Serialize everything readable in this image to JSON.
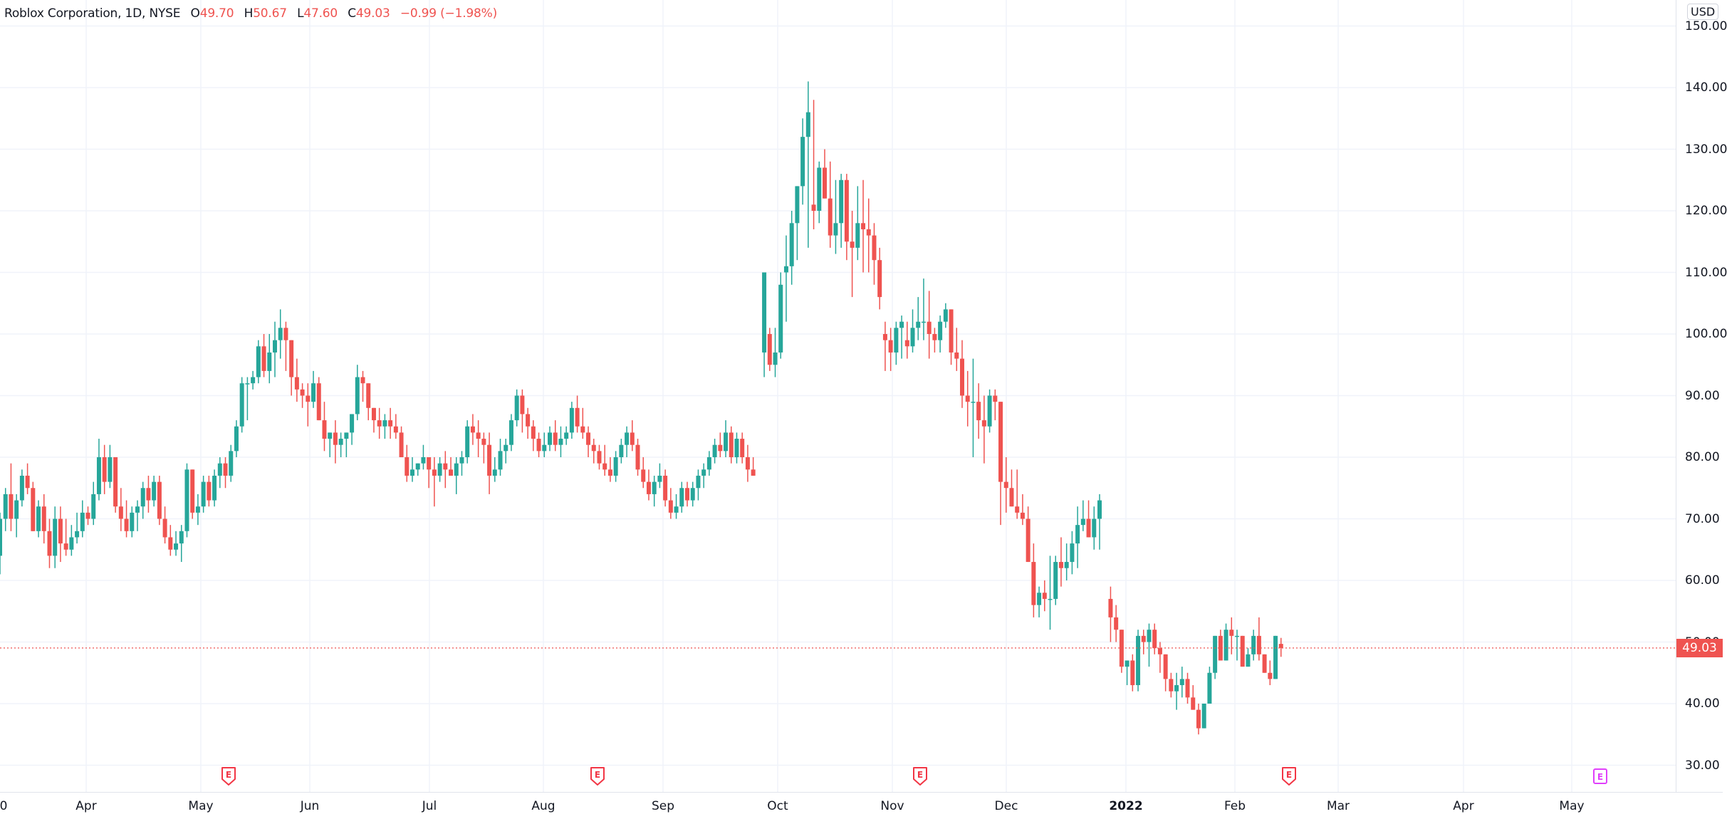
{
  "legend": {
    "symbol": "Roblox Corporation, 1D, NYSE",
    "open_label": "O",
    "open": "49.70",
    "high_label": "H",
    "high": "50.67",
    "low_label": "L",
    "low": "47.60",
    "close_label": "C",
    "close": "49.03",
    "change": "−0.99 (−1.98%)"
  },
  "price_axis": {
    "currency": "USD",
    "last_price": "49.03",
    "ticks": [
      "150.00",
      "140.00",
      "130.00",
      "120.00",
      "110.00",
      "100.00",
      "90.00",
      "80.00",
      "70.00",
      "60.00",
      "50.00",
      "40.00",
      "30.00"
    ]
  },
  "time_axis": {
    "labels": [
      {
        "text": "0",
        "x": 5,
        "bold": false
      },
      {
        "text": "Apr",
        "x": 121,
        "bold": false
      },
      {
        "text": "May",
        "x": 282,
        "bold": false
      },
      {
        "text": "Jun",
        "x": 435,
        "bold": false
      },
      {
        "text": "Jul",
        "x": 603,
        "bold": false
      },
      {
        "text": "Aug",
        "x": 763,
        "bold": false
      },
      {
        "text": "Sep",
        "x": 931,
        "bold": false
      },
      {
        "text": "Oct",
        "x": 1092,
        "bold": false
      },
      {
        "text": "Nov",
        "x": 1253,
        "bold": false
      },
      {
        "text": "Dec",
        "x": 1413,
        "bold": false
      },
      {
        "text": "2022",
        "x": 1581,
        "bold": true
      },
      {
        "text": "Feb",
        "x": 1734,
        "bold": false
      },
      {
        "text": "Mar",
        "x": 1879,
        "bold": false
      },
      {
        "text": "Apr",
        "x": 2055,
        "bold": false
      },
      {
        "text": "May",
        "x": 2207,
        "bold": false
      }
    ]
  },
  "earnings_markers": [
    {
      "label": "E",
      "x": 321,
      "color": "#f23645"
    },
    {
      "label": "E",
      "x": 839,
      "color": "#f23645"
    },
    {
      "label": "E",
      "x": 1292,
      "color": "#f23645"
    },
    {
      "label": "E",
      "x": 1810,
      "color": "#f23645"
    },
    {
      "label": "E",
      "x": 2247,
      "color": "#e040fb"
    }
  ],
  "colors": {
    "up": "#26a69a",
    "down": "#ef5350",
    "grid": "#f0f3fa",
    "last_line": "#ef5350"
  },
  "chart_data": {
    "type": "candlestick",
    "title": "Roblox Corporation, 1D, NYSE",
    "xlabel": "",
    "ylabel": "USD",
    "ylim": [
      26,
      152
    ],
    "grid": true,
    "last_price": 49.03,
    "x_ticks": [
      "Apr",
      "May",
      "Jun",
      "Jul",
      "Aug",
      "Sep",
      "Oct",
      "Nov",
      "Dec",
      "2022",
      "Feb",
      "Mar",
      "Apr",
      "May"
    ],
    "y_ticks": [
      30,
      40,
      50,
      60,
      70,
      80,
      90,
      100,
      110,
      120,
      130,
      140,
      150
    ],
    "candle_spacing_px": 7.72,
    "first_candle_x": 0,
    "ohlc": [
      [
        64,
        71,
        61,
        70
      ],
      [
        70,
        75,
        68,
        74
      ],
      [
        74,
        79,
        68,
        70
      ],
      [
        70,
        74,
        67,
        73
      ],
      [
        73,
        78,
        72,
        77
      ],
      [
        77,
        79,
        74,
        75
      ],
      [
        75,
        76,
        70,
        68
      ],
      [
        68,
        73,
        67,
        72
      ],
      [
        72,
        74,
        66,
        68
      ],
      [
        68,
        70,
        62,
        64
      ],
      [
        64,
        72,
        62,
        70
      ],
      [
        70,
        72,
        63,
        66
      ],
      [
        66,
        70,
        64,
        65
      ],
      [
        65,
        69,
        64,
        67
      ],
      [
        67,
        71,
        66,
        68
      ],
      [
        68,
        73,
        67,
        71
      ],
      [
        71,
        72,
        69,
        70
      ],
      [
        70,
        76,
        69,
        74
      ],
      [
        74,
        83,
        73,
        80
      ],
      [
        80,
        82,
        74,
        76
      ],
      [
        76,
        82,
        75,
        80
      ],
      [
        80,
        80,
        71,
        72
      ],
      [
        72,
        75,
        68,
        70
      ],
      [
        70,
        73,
        67,
        68
      ],
      [
        68,
        72,
        67,
        71
      ],
      [
        71,
        73,
        68,
        72
      ],
      [
        72,
        76,
        70,
        75
      ],
      [
        75,
        77,
        71,
        73
      ],
      [
        73,
        77,
        72,
        76
      ],
      [
        76,
        77,
        69,
        70
      ],
      [
        70,
        72,
        66,
        67
      ],
      [
        67,
        69,
        64,
        65
      ],
      [
        65,
        68,
        64,
        66
      ],
      [
        66,
        69,
        63,
        68
      ],
      [
        68,
        79,
        67,
        78
      ],
      [
        78,
        78,
        70,
        71
      ],
      [
        71,
        74,
        69,
        72
      ],
      [
        72,
        77,
        71,
        76
      ],
      [
        76,
        77,
        72,
        73
      ],
      [
        73,
        78,
        72,
        77
      ],
      [
        77,
        80,
        75,
        79
      ],
      [
        79,
        80,
        75,
        77
      ],
      [
        77,
        82,
        76,
        81
      ],
      [
        81,
        86,
        80,
        85
      ],
      [
        85,
        93,
        84,
        92
      ],
      [
        92,
        93,
        86,
        92
      ],
      [
        92,
        94,
        91,
        93
      ],
      [
        93,
        99,
        92,
        98
      ],
      [
        98,
        100,
        93,
        94
      ],
      [
        94,
        100,
        92,
        97
      ],
      [
        97,
        102,
        93,
        99
      ],
      [
        99,
        104,
        96,
        101
      ],
      [
        101,
        102,
        94,
        99
      ],
      [
        99,
        95,
        90,
        93
      ],
      [
        93,
        96,
        89,
        91
      ],
      [
        91,
        92,
        88,
        90
      ],
      [
        90,
        92,
        85,
        89
      ],
      [
        89,
        94,
        88,
        92
      ],
      [
        92,
        93,
        86,
        86
      ],
      [
        86,
        89,
        81,
        83
      ],
      [
        83,
        84,
        80,
        84
      ],
      [
        84,
        86,
        79,
        82
      ],
      [
        82,
        84,
        80,
        83
      ],
      [
        83,
        84,
        80,
        84
      ],
      [
        84,
        87,
        82,
        87
      ],
      [
        87,
        95,
        86,
        93
      ],
      [
        93,
        94,
        89,
        92
      ],
      [
        92,
        92,
        86,
        88
      ],
      [
        88,
        88,
        84,
        86
      ],
      [
        86,
        88,
        83,
        85
      ],
      [
        85,
        87,
        83,
        86
      ],
      [
        86,
        88,
        83,
        85
      ],
      [
        85,
        87,
        83,
        84
      ],
      [
        84,
        85,
        80,
        80
      ],
      [
        80,
        82,
        76,
        77
      ],
      [
        77,
        80,
        76,
        78
      ],
      [
        78,
        79,
        77,
        79
      ],
      [
        79,
        82,
        78,
        80
      ],
      [
        80,
        80,
        75,
        78
      ],
      [
        78,
        80,
        72,
        77
      ],
      [
        77,
        80,
        76,
        79
      ],
      [
        79,
        81,
        75,
        78
      ],
      [
        78,
        80,
        77,
        77
      ],
      [
        77,
        80,
        74,
        79
      ],
      [
        79,
        81,
        77,
        80
      ],
      [
        80,
        86,
        79,
        85
      ],
      [
        85,
        87,
        82,
        84
      ],
      [
        84,
        86,
        80,
        83
      ],
      [
        83,
        84,
        79,
        82
      ],
      [
        82,
        84,
        74,
        77
      ],
      [
        77,
        80,
        76,
        78
      ],
      [
        78,
        83,
        77,
        81
      ],
      [
        81,
        83,
        79,
        82
      ],
      [
        82,
        87,
        81,
        86
      ],
      [
        86,
        91,
        85,
        90
      ],
      [
        90,
        91,
        84,
        87
      ],
      [
        87,
        88,
        83,
        85
      ],
      [
        85,
        86,
        81,
        83
      ],
      [
        83,
        84,
        80,
        81
      ],
      [
        81,
        84,
        80,
        82
      ],
      [
        82,
        85,
        81,
        84
      ],
      [
        84,
        86,
        81,
        82
      ],
      [
        82,
        85,
        80,
        83
      ],
      [
        83,
        85,
        82,
        84
      ],
      [
        84,
        89,
        83,
        88
      ],
      [
        88,
        90,
        84,
        85
      ],
      [
        85,
        88,
        83,
        84
      ],
      [
        84,
        85,
        80,
        82
      ],
      [
        82,
        83,
        79,
        81
      ],
      [
        81,
        82,
        78,
        79
      ],
      [
        79,
        82,
        77,
        78
      ],
      [
        78,
        80,
        76,
        77
      ],
      [
        77,
        81,
        76,
        80
      ],
      [
        80,
        83,
        79,
        82
      ],
      [
        82,
        85,
        80,
        84
      ],
      [
        84,
        86,
        81,
        82
      ],
      [
        82,
        83,
        77,
        78
      ],
      [
        78,
        80,
        75,
        76
      ],
      [
        76,
        78,
        73,
        74
      ],
      [
        74,
        77,
        72,
        76
      ],
      [
        76,
        79,
        75,
        77
      ],
      [
        77,
        78,
        72,
        73
      ],
      [
        73,
        75,
        70,
        71
      ],
      [
        71,
        74,
        70,
        72
      ],
      [
        72,
        76,
        71,
        75
      ],
      [
        75,
        76,
        72,
        73
      ],
      [
        73,
        76,
        72,
        75
      ],
      [
        75,
        78,
        73,
        77
      ],
      [
        77,
        79,
        75,
        78
      ],
      [
        78,
        81,
        77,
        80
      ],
      [
        80,
        83,
        79,
        82
      ],
      [
        82,
        84,
        80,
        81
      ],
      [
        81,
        86,
        80,
        84
      ],
      [
        84,
        85,
        79,
        80
      ],
      [
        80,
        84,
        79,
        83
      ],
      [
        83,
        84,
        79,
        80
      ],
      [
        80,
        82,
        76,
        78
      ],
      [
        78,
        80,
        77,
        77
      ],
      null,
      [
        97,
        110,
        93,
        110
      ],
      [
        100,
        101,
        94,
        95
      ],
      [
        95,
        101,
        93,
        97
      ],
      [
        97,
        110,
        96,
        108
      ],
      [
        110,
        116,
        102,
        111
      ],
      [
        111,
        120,
        108,
        118
      ],
      [
        118,
        124,
        112,
        124
      ],
      [
        124,
        135,
        121,
        132
      ],
      [
        132,
        141,
        114,
        136
      ],
      [
        121,
        138,
        117,
        120
      ],
      [
        120,
        128,
        118,
        127
      ],
      [
        127,
        130,
        122,
        122
      ],
      [
        122,
        128,
        114,
        116
      ],
      [
        116,
        125,
        113,
        118
      ],
      [
        118,
        126,
        114,
        125
      ],
      [
        125,
        126,
        112,
        115
      ],
      [
        115,
        120,
        106,
        114
      ],
      [
        114,
        124,
        112,
        118
      ],
      [
        118,
        125,
        110,
        117
      ],
      [
        117,
        122,
        110,
        116
      ],
      [
        116,
        118,
        108,
        112
      ],
      [
        112,
        114,
        104,
        106
      ],
      [
        100,
        102,
        94,
        99
      ],
      [
        99,
        101,
        94,
        97
      ],
      [
        97,
        102,
        95,
        101
      ],
      [
        101,
        103,
        96,
        102
      ],
      [
        99,
        102,
        96,
        98
      ],
      [
        98,
        104,
        97,
        101
      ],
      [
        101,
        106,
        99,
        102
      ],
      [
        102,
        109,
        99,
        102
      ],
      [
        102,
        107,
        96,
        100
      ],
      [
        100,
        101,
        97,
        99
      ],
      [
        99,
        103,
        97,
        102
      ],
      [
        102,
        105,
        101,
        104
      ],
      [
        104,
        103,
        95,
        97
      ],
      [
        97,
        101,
        94,
        96
      ],
      [
        96,
        99,
        88,
        90
      ],
      [
        90,
        94,
        85,
        89
      ],
      [
        89,
        96,
        80,
        89
      ],
      [
        89,
        92,
        83,
        86
      ],
      [
        86,
        90,
        79,
        85
      ],
      [
        85,
        91,
        84,
        90
      ],
      [
        90,
        91,
        86,
        89
      ],
      [
        89,
        89,
        69,
        76
      ],
      [
        76,
        80,
        71,
        75
      ],
      [
        75,
        78,
        72,
        72
      ],
      [
        72,
        78,
        70,
        71
      ],
      [
        71,
        74,
        69,
        70
      ],
      [
        70,
        72,
        64,
        63
      ],
      [
        63,
        66,
        54,
        56
      ],
      [
        56,
        59,
        54,
        58
      ],
      [
        58,
        60,
        55,
        57
      ],
      [
        57,
        64,
        52,
        57
      ],
      [
        57,
        64,
        56,
        63
      ],
      [
        63,
        67,
        59,
        62
      ],
      [
        62,
        66,
        60,
        63
      ],
      [
        63,
        68,
        61,
        66
      ],
      [
        66,
        72,
        62,
        69
      ],
      [
        69,
        73,
        68,
        70
      ],
      [
        70,
        73,
        67,
        67
      ],
      [
        67,
        72,
        65,
        70
      ],
      [
        70,
        74,
        65,
        73
      ],
      null,
      [
        57,
        59,
        50,
        54
      ],
      [
        54,
        56,
        50,
        52
      ],
      [
        52,
        52,
        45,
        46
      ],
      [
        46,
        47,
        43,
        47
      ],
      [
        47,
        48,
        42,
        43
      ],
      [
        43,
        52,
        42,
        51
      ],
      [
        51,
        52,
        48,
        50
      ],
      [
        50,
        53,
        46,
        52
      ],
      [
        52,
        53,
        48,
        49
      ],
      [
        49,
        50,
        45,
        48
      ],
      [
        48,
        48,
        42,
        44
      ],
      [
        44,
        45,
        41,
        42
      ],
      [
        42,
        45,
        39,
        43
      ],
      [
        43,
        46,
        41,
        44
      ],
      [
        44,
        45,
        40,
        41
      ],
      [
        41,
        43,
        39,
        39
      ],
      [
        39,
        40,
        35,
        36
      ],
      [
        36,
        40,
        36,
        40
      ],
      [
        40,
        46,
        40,
        45
      ],
      [
        45,
        50,
        44,
        51
      ],
      [
        51,
        52,
        47,
        47
      ],
      [
        47,
        53,
        47,
        52
      ],
      [
        52,
        54,
        48,
        51
      ],
      [
        51,
        52,
        47,
        51
      ],
      [
        51,
        50,
        46,
        46
      ],
      [
        46,
        49,
        46,
        48
      ],
      [
        48,
        52,
        47,
        51
      ],
      [
        51,
        54,
        47,
        48
      ],
      [
        48,
        48,
        45,
        45
      ],
      [
        45,
        47,
        43,
        44
      ],
      [
        44,
        51,
        44,
        51
      ],
      [
        49.7,
        50.67,
        47.6,
        49.03
      ]
    ]
  }
}
